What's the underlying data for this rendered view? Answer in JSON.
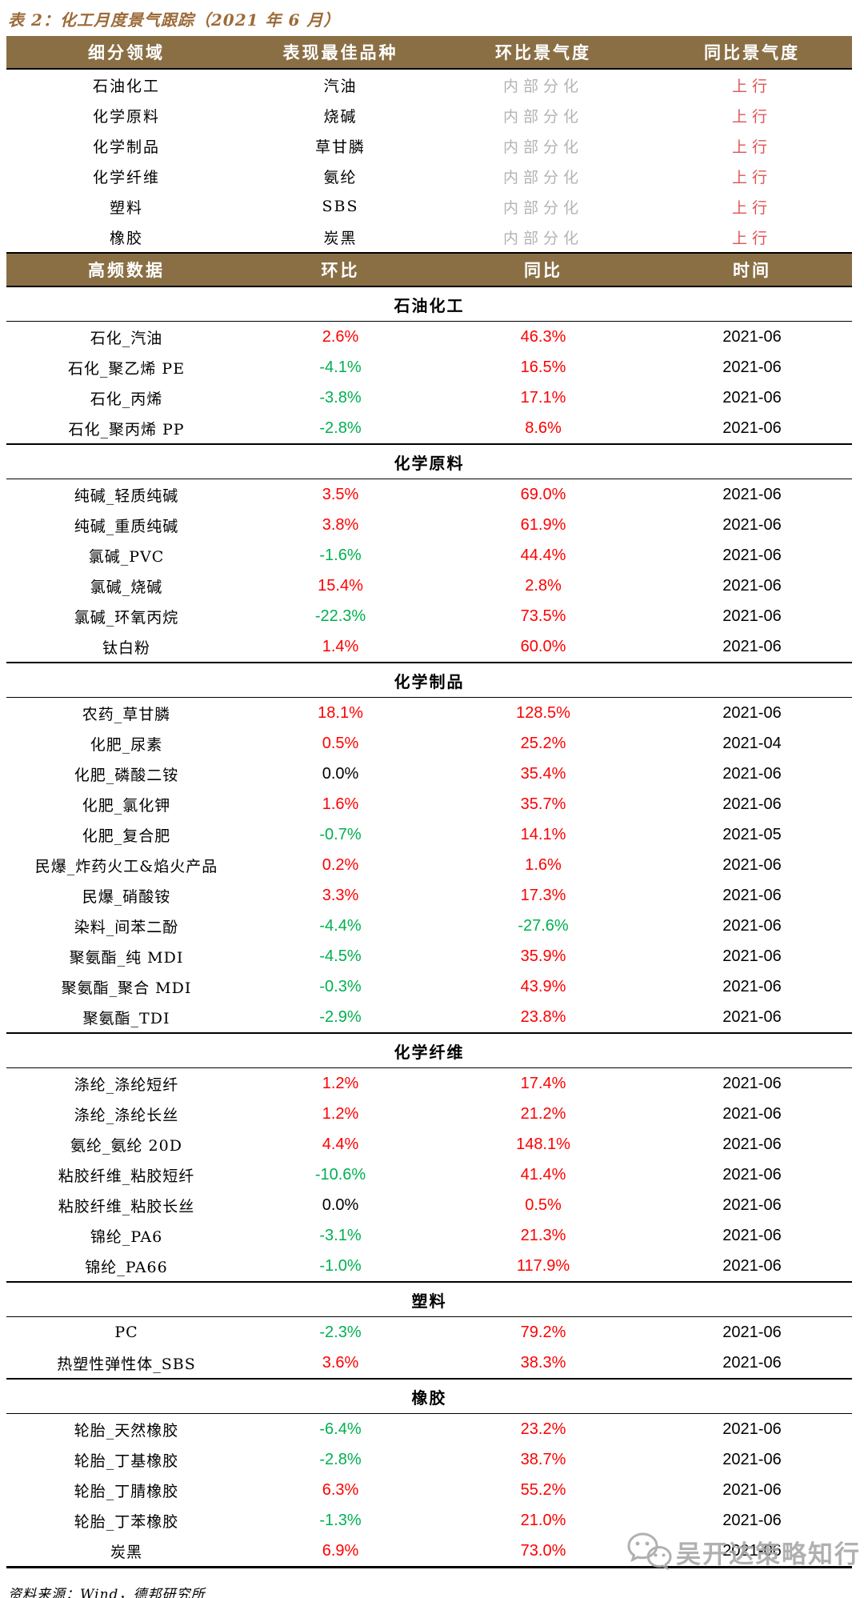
{
  "title": "表 2：化工月度景气跟踪（2021 年 6 月）",
  "colors": {
    "header_background": "#8a6f45",
    "title_brown": "#9c6a38",
    "up_red": "#fe0000",
    "down_green": "#00b050",
    "trend_red": "#e05353",
    "muted_gray": "#b3b3b3"
  },
  "summary_table": {
    "headers": [
      "细分领域",
      "表现最佳品种",
      "环比景气度",
      "同比景气度"
    ],
    "rows": [
      {
        "segment": "石油化工",
        "best": "汽油",
        "mom": "内部分化",
        "yoy": "上行"
      },
      {
        "segment": "化学原料",
        "best": "烧碱",
        "mom": "内部分化",
        "yoy": "上行"
      },
      {
        "segment": "化学制品",
        "best": "草甘膦",
        "mom": "内部分化",
        "yoy": "上行"
      },
      {
        "segment": "化学纤维",
        "best": "氨纶",
        "mom": "内部分化",
        "yoy": "上行"
      },
      {
        "segment": "塑料",
        "best": "SBS",
        "mom": "内部分化",
        "yoy": "上行"
      },
      {
        "segment": "橡胶",
        "best": "炭黑",
        "mom": "内部分化",
        "yoy": "上行"
      }
    ]
  },
  "detail_table": {
    "headers": [
      "高频数据",
      "环比",
      "同比",
      "时间"
    ],
    "sections": [
      {
        "name": "石油化工",
        "rows": [
          {
            "item": "石化_汽油",
            "mom": "2.6%",
            "yoy": "46.3%",
            "time": "2021-06"
          },
          {
            "item": "石化_聚乙烯 PE",
            "mom": "-4.1%",
            "yoy": "16.5%",
            "time": "2021-06"
          },
          {
            "item": "石化_丙烯",
            "mom": "-3.8%",
            "yoy": "17.1%",
            "time": "2021-06"
          },
          {
            "item": "石化_聚丙烯 PP",
            "mom": "-2.8%",
            "yoy": "8.6%",
            "time": "2021-06"
          }
        ]
      },
      {
        "name": "化学原料",
        "rows": [
          {
            "item": "纯碱_轻质纯碱",
            "mom": "3.5%",
            "yoy": "69.0%",
            "time": "2021-06"
          },
          {
            "item": "纯碱_重质纯碱",
            "mom": "3.8%",
            "yoy": "61.9%",
            "time": "2021-06"
          },
          {
            "item": "氯碱_PVC",
            "mom": "-1.6%",
            "yoy": "44.4%",
            "time": "2021-06"
          },
          {
            "item": "氯碱_烧碱",
            "mom": "15.4%",
            "yoy": "2.8%",
            "time": "2021-06"
          },
          {
            "item": "氯碱_环氧丙烷",
            "mom": "-22.3%",
            "yoy": "73.5%",
            "time": "2021-06"
          },
          {
            "item": "钛白粉",
            "mom": "1.4%",
            "yoy": "60.0%",
            "time": "2021-06"
          }
        ]
      },
      {
        "name": "化学制品",
        "rows": [
          {
            "item": "农药_草甘膦",
            "mom": "18.1%",
            "yoy": "128.5%",
            "time": "2021-06"
          },
          {
            "item": "化肥_尿素",
            "mom": "0.5%",
            "yoy": "25.2%",
            "time": "2021-04"
          },
          {
            "item": "化肥_磷酸二铵",
            "mom": "0.0%",
            "yoy": "35.4%",
            "time": "2021-06"
          },
          {
            "item": "化肥_氯化钾",
            "mom": "1.6%",
            "yoy": "35.7%",
            "time": "2021-06"
          },
          {
            "item": "化肥_复合肥",
            "mom": "-0.7%",
            "yoy": "14.1%",
            "time": "2021-05"
          },
          {
            "item": "民爆_炸药火工&焰火产品",
            "mom": "0.2%",
            "yoy": "1.6%",
            "time": "2021-06"
          },
          {
            "item": "民爆_硝酸铵",
            "mom": "3.3%",
            "yoy": "17.3%",
            "time": "2021-06"
          },
          {
            "item": "染料_间苯二酚",
            "mom": "-4.4%",
            "yoy": "-27.6%",
            "time": "2021-06"
          },
          {
            "item": "聚氨酯_纯 MDI",
            "mom": "-4.5%",
            "yoy": "35.9%",
            "time": "2021-06"
          },
          {
            "item": "聚氨酯_聚合 MDI",
            "mom": "-0.3%",
            "yoy": "43.9%",
            "time": "2021-06"
          },
          {
            "item": "聚氨酯_TDI",
            "mom": "-2.9%",
            "yoy": "23.8%",
            "time": "2021-06"
          }
        ]
      },
      {
        "name": "化学纤维",
        "rows": [
          {
            "item": "涤纶_涤纶短纤",
            "mom": "1.2%",
            "yoy": "17.4%",
            "time": "2021-06"
          },
          {
            "item": "涤纶_涤纶长丝",
            "mom": "1.2%",
            "yoy": "21.2%",
            "time": "2021-06"
          },
          {
            "item": "氨纶_氨纶 20D",
            "mom": "4.4%",
            "yoy": "148.1%",
            "time": "2021-06"
          },
          {
            "item": "粘胶纤维_粘胶短纤",
            "mom": "-10.6%",
            "yoy": "41.4%",
            "time": "2021-06"
          },
          {
            "item": "粘胶纤维_粘胶长丝",
            "mom": "0.0%",
            "yoy": "0.5%",
            "time": "2021-06"
          },
          {
            "item": "锦纶_PA6",
            "mom": "-3.1%",
            "yoy": "21.3%",
            "time": "2021-06"
          },
          {
            "item": "锦纶_PA66",
            "mom": "-1.0%",
            "yoy": "117.9%",
            "time": "2021-06"
          }
        ]
      },
      {
        "name": "塑料",
        "rows": [
          {
            "item": "PC",
            "mom": "-2.3%",
            "yoy": "79.2%",
            "time": "2021-06"
          },
          {
            "item": "热塑性弹性体_SBS",
            "mom": "3.6%",
            "yoy": "38.3%",
            "time": "2021-06"
          }
        ]
      },
      {
        "name": "橡胶",
        "rows": [
          {
            "item": "轮胎_天然橡胶",
            "mom": "-6.4%",
            "yoy": "23.2%",
            "time": "2021-06"
          },
          {
            "item": "轮胎_丁基橡胶",
            "mom": "-2.8%",
            "yoy": "38.7%",
            "time": "2021-06"
          },
          {
            "item": "轮胎_丁腈橡胶",
            "mom": "6.3%",
            "yoy": "55.2%",
            "time": "2021-06"
          },
          {
            "item": "轮胎_丁苯橡胶",
            "mom": "-1.3%",
            "yoy": "21.0%",
            "time": "2021-06"
          },
          {
            "item": "炭黑",
            "mom": "6.9%",
            "yoy": "73.0%",
            "time": "2021-06"
          }
        ]
      }
    ]
  },
  "footer": {
    "source": "资料来源：Wind，德邦研究所"
  },
  "watermark": {
    "icon": "wechat-icon",
    "text": "吴开达策略知行"
  }
}
